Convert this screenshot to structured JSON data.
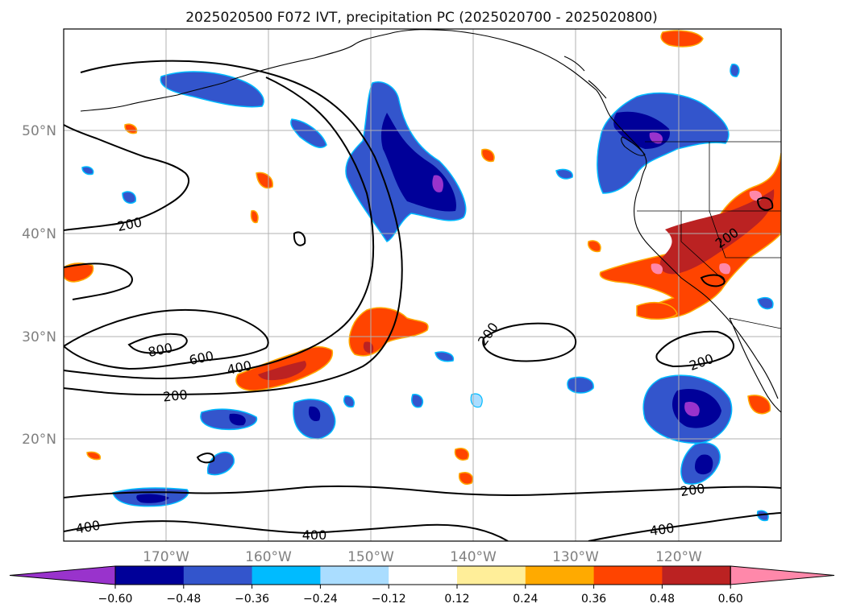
{
  "title": "2025020500 F072 IVT, precipitation PC (2025020700 - 2025020800)",
  "map": {
    "lat_ticks": [
      "50°N",
      "40°N",
      "30°N",
      "20°N"
    ],
    "lon_ticks": [
      "170°W",
      "160°W",
      "150°W",
      "140°W",
      "130°W",
      "120°W"
    ],
    "contour_labels": [
      "200",
      "200",
      "800",
      "600",
      "400",
      "200",
      "200",
      "200",
      "200",
      "200",
      "400",
      "400",
      "400"
    ]
  },
  "colorbar": {
    "colors": [
      "#9933CC",
      "#000099",
      "#3355CC",
      "#00BBFF",
      "#AADDFF",
      "#FFFFFF",
      "#FFEE99",
      "#FFAA00",
      "#FF4400",
      "#BB2222",
      "#FF88AA"
    ],
    "tick_labels": [
      "−0.60",
      "−0.48",
      "−0.36",
      "−0.24",
      "−0.12",
      "0.12",
      "0.24",
      "0.36",
      "0.48",
      "0.60"
    ]
  }
}
